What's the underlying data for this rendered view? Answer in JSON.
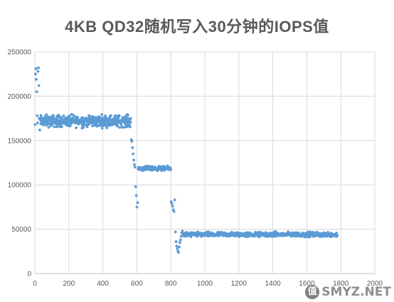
{
  "chart_data": {
    "type": "scatter",
    "title": "4KB QD32随机写入30分钟的IOPS值",
    "xlabel": "",
    "ylabel": "",
    "xlim": [
      0,
      2000
    ],
    "ylim": [
      0,
      250000
    ],
    "x_ticks": [
      0,
      200,
      400,
      600,
      800,
      1000,
      1200,
      1400,
      1600,
      1800,
      2000
    ],
    "y_ticks": [
      0,
      50000,
      100000,
      150000,
      200000,
      250000
    ],
    "grid": true,
    "legend": "none",
    "marker_color": "#5B9BD5",
    "series": [
      {
        "segments": [
          {
            "x_range": [
              0,
              30
            ],
            "pattern": [
              168000,
              225000,
              231000,
              219000,
              205000,
              178000,
              170000,
              228000,
              232000,
              212000,
              175000,
              162000
            ]
          },
          {
            "x_range": [
              30,
              565
            ],
            "center": 172000,
            "spread": 9500,
            "count": 420
          },
          {
            "x_range": [
              565,
              610
            ],
            "values": [
              151000,
              149000,
              142000,
              135000,
              128000,
              123000,
              120000,
              98000,
              88000,
              75000,
              80000,
              118000
            ]
          },
          {
            "x_range": [
              610,
              800
            ],
            "center": 118500,
            "spread": 3500,
            "count": 140
          },
          {
            "x_range": [
              800,
              825
            ],
            "values": [
              81000,
              79000,
              76000,
              72000,
              70000,
              83000
            ]
          },
          {
            "x_range": [
              825,
              870
            ],
            "values": [
              47000,
              36000,
              31000,
              28000,
              25000,
              24000,
              30000,
              35000,
              38000,
              42000,
              46000,
              48000
            ]
          },
          {
            "x_range": [
              870,
              1780
            ],
            "center": 44000,
            "spread": 4000,
            "count": 520
          }
        ]
      }
    ]
  },
  "watermark": {
    "badge": "值",
    "text": "SMYZ.NET"
  }
}
